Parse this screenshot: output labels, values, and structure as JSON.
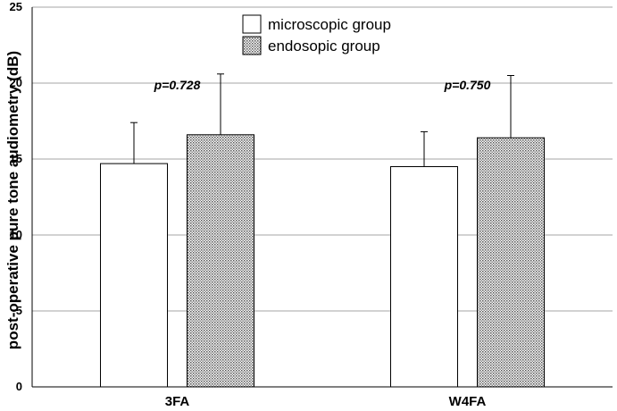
{
  "chart_data": {
    "type": "bar",
    "categories": [
      "3FA",
      "W4FA"
    ],
    "series": [
      {
        "name": "microscopic group",
        "values": [
          14.7,
          14.5
        ],
        "errors": [
          2.7,
          2.3
        ],
        "pattern": "white"
      },
      {
        "name": "endosopic group",
        "values": [
          16.6,
          16.4
        ],
        "errors": [
          4.0,
          4.1
        ],
        "pattern": "dotted"
      }
    ],
    "annotations": [
      "p=0.728",
      "p=0.750"
    ],
    "xlabel": "",
    "ylabel": "post-operative pure tone audiometry (dB)",
    "ylim": [
      0,
      25
    ],
    "yticks": [
      0,
      5,
      10,
      15,
      20,
      25
    ],
    "grid": true,
    "legend": "top-center"
  }
}
